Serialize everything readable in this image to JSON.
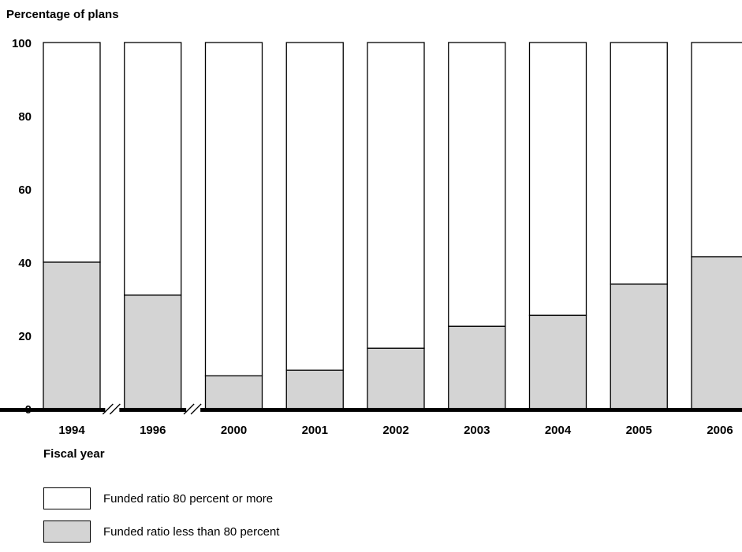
{
  "chart_data": {
    "type": "bar",
    "stacked": true,
    "ylabel": "Percentage of plans",
    "xlabel": "Fiscal year",
    "ylim": [
      0,
      100
    ],
    "yticks": [
      0,
      20,
      40,
      60,
      80,
      100
    ],
    "categories": [
      "1994",
      "1996",
      "2000",
      "2001",
      "2002",
      "2003",
      "2004",
      "2005",
      "2006"
    ],
    "axis_breaks_after": [
      "1994",
      "1996"
    ],
    "series": [
      {
        "name": "Funded ratio less than 80 percent",
        "color": "#d4d4d4",
        "values": [
          40,
          31,
          9,
          10.5,
          16.5,
          22.5,
          25.5,
          34,
          41.5
        ]
      },
      {
        "name": "Funded ratio 80 percent or more",
        "color": "#ffffff",
        "values": [
          60,
          69,
          91,
          89.5,
          83.5,
          77.5,
          74.5,
          66,
          58.5
        ]
      }
    ],
    "legend": {
      "position": "bottom-left",
      "order": [
        "Funded ratio 80 percent or more",
        "Funded ratio less than 80 percent"
      ]
    }
  }
}
